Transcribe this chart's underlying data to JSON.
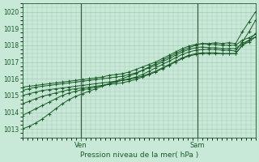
{
  "title": "",
  "xlabel": "Pression niveau de la mer( hPa )",
  "ylim": [
    1012.5,
    1020.5
  ],
  "xlim": [
    0,
    96
  ],
  "yticks": [
    1013,
    1014,
    1015,
    1016,
    1017,
    1018,
    1019,
    1020
  ],
  "xtick_positions": [
    24,
    72
  ],
  "xtick_labels": [
    "Ven",
    "Sam"
  ],
  "background_color": "#c8e8d8",
  "grid_color": "#a0c0b0",
  "line_color": "#1a5c28",
  "vline_color": "#3a6040",
  "vline_positions": [
    24,
    72
  ],
  "series": [
    [
      1013.0,
      1013.15,
      1013.35,
      1013.6,
      1013.9,
      1014.2,
      1014.5,
      1014.75,
      1014.95,
      1015.1,
      1015.25,
      1015.4,
      1015.55,
      1015.7,
      1015.85,
      1016.0,
      1016.15,
      1016.3,
      1016.5,
      1016.7,
      1016.9,
      1017.1,
      1017.3,
      1017.5,
      1017.7,
      1017.85,
      1018.0,
      1018.1,
      1018.1,
      1018.15,
      1018.1,
      1018.15,
      1018.1,
      1018.8,
      1019.4,
      1020.0
    ],
    [
      1013.8,
      1014.0,
      1014.2,
      1014.4,
      1014.6,
      1014.8,
      1015.0,
      1015.15,
      1015.25,
      1015.35,
      1015.4,
      1015.5,
      1015.6,
      1015.7,
      1015.8,
      1015.9,
      1016.0,
      1016.1,
      1016.25,
      1016.45,
      1016.65,
      1016.85,
      1017.05,
      1017.25,
      1017.45,
      1017.6,
      1017.7,
      1017.75,
      1017.75,
      1017.75,
      1017.7,
      1017.7,
      1017.65,
      1018.2,
      1018.8,
      1019.5
    ],
    [
      1014.5,
      1014.65,
      1014.8,
      1014.95,
      1015.05,
      1015.15,
      1015.25,
      1015.35,
      1015.4,
      1015.45,
      1015.5,
      1015.55,
      1015.6,
      1015.65,
      1015.7,
      1015.75,
      1015.85,
      1015.95,
      1016.1,
      1016.25,
      1016.4,
      1016.6,
      1016.8,
      1017.0,
      1017.2,
      1017.35,
      1017.45,
      1017.5,
      1017.5,
      1017.5,
      1017.5,
      1017.5,
      1017.5,
      1018.0,
      1018.3,
      1018.7
    ],
    [
      1015.0,
      1015.1,
      1015.2,
      1015.3,
      1015.35,
      1015.4,
      1015.45,
      1015.5,
      1015.55,
      1015.6,
      1015.65,
      1015.7,
      1015.75,
      1015.8,
      1015.85,
      1015.9,
      1015.95,
      1016.05,
      1016.15,
      1016.3,
      1016.45,
      1016.65,
      1016.85,
      1017.05,
      1017.25,
      1017.4,
      1017.5,
      1017.55,
      1017.55,
      1017.55,
      1017.5,
      1017.5,
      1017.5,
      1018.0,
      1018.2,
      1018.5
    ],
    [
      1015.3,
      1015.4,
      1015.5,
      1015.55,
      1015.6,
      1015.65,
      1015.7,
      1015.75,
      1015.8,
      1015.85,
      1015.9,
      1015.95,
      1016.0,
      1016.05,
      1016.1,
      1016.15,
      1016.25,
      1016.35,
      1016.5,
      1016.65,
      1016.8,
      1017.0,
      1017.2,
      1017.4,
      1017.6,
      1017.75,
      1017.85,
      1017.9,
      1017.85,
      1017.85,
      1017.8,
      1017.8,
      1017.8,
      1018.1,
      1018.3,
      1018.5
    ],
    [
      1015.5,
      1015.55,
      1015.6,
      1015.65,
      1015.7,
      1015.75,
      1015.8,
      1015.85,
      1015.9,
      1015.95,
      1016.0,
      1016.05,
      1016.1,
      1016.2,
      1016.25,
      1016.3,
      1016.4,
      1016.55,
      1016.7,
      1016.85,
      1017.0,
      1017.2,
      1017.4,
      1017.6,
      1017.8,
      1017.95,
      1018.05,
      1018.1,
      1018.05,
      1018.05,
      1018.0,
      1018.0,
      1018.0,
      1018.3,
      1018.45,
      1018.65
    ]
  ]
}
